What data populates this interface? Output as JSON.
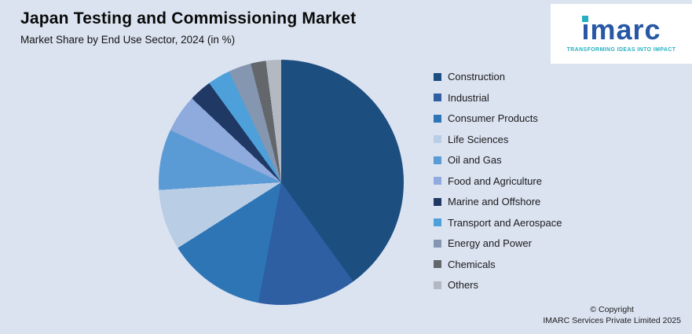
{
  "header": {
    "title": "Japan Testing and Commissioning Market",
    "subtitle": "Market Share by End Use Sector, 2024 (in %)"
  },
  "logo": {
    "brand": "imarc",
    "tagline": "TRANSFORMING IDEAS INTO IMPACT"
  },
  "footer": {
    "copyright_line1": "© Copyright",
    "copyright_line2": "IMARC Services Private Limited 2025"
  },
  "colors": {
    "background": "#dbe3f1",
    "logo_blue": "#2757a5",
    "logo_teal": "#25b0bf"
  },
  "chart_data": {
    "type": "pie",
    "title": "Japan Testing and Commissioning Market",
    "subtitle": "Market Share by End Use Sector, 2024 (in %)",
    "legend_position": "right",
    "start_angle_deg": 0,
    "direction": "clockwise",
    "value_unit": "percent",
    "values_estimated": true,
    "slices": [
      {
        "label": "Construction",
        "value": 40,
        "color": "#1c4e80"
      },
      {
        "label": "Industrial",
        "value": 13,
        "color": "#2e5fa3"
      },
      {
        "label": "Consumer Products",
        "value": 13,
        "color": "#2e75b6"
      },
      {
        "label": "Life Sciences",
        "value": 8,
        "color": "#b9cde5"
      },
      {
        "label": "Oil and Gas",
        "value": 8,
        "color": "#5b9bd5"
      },
      {
        "label": "Food and Agriculture",
        "value": 5,
        "color": "#8faadc"
      },
      {
        "label": "Marine and Offshore",
        "value": 3,
        "color": "#203864"
      },
      {
        "label": "Transport and Aerospace",
        "value": 3,
        "color": "#4da0d9"
      },
      {
        "label": "Energy and Power",
        "value": 3,
        "color": "#8496b0"
      },
      {
        "label": "Chemicals",
        "value": 2,
        "color": "#63666a"
      },
      {
        "label": "Others",
        "value": 2,
        "color": "#b3b9c2"
      }
    ]
  }
}
